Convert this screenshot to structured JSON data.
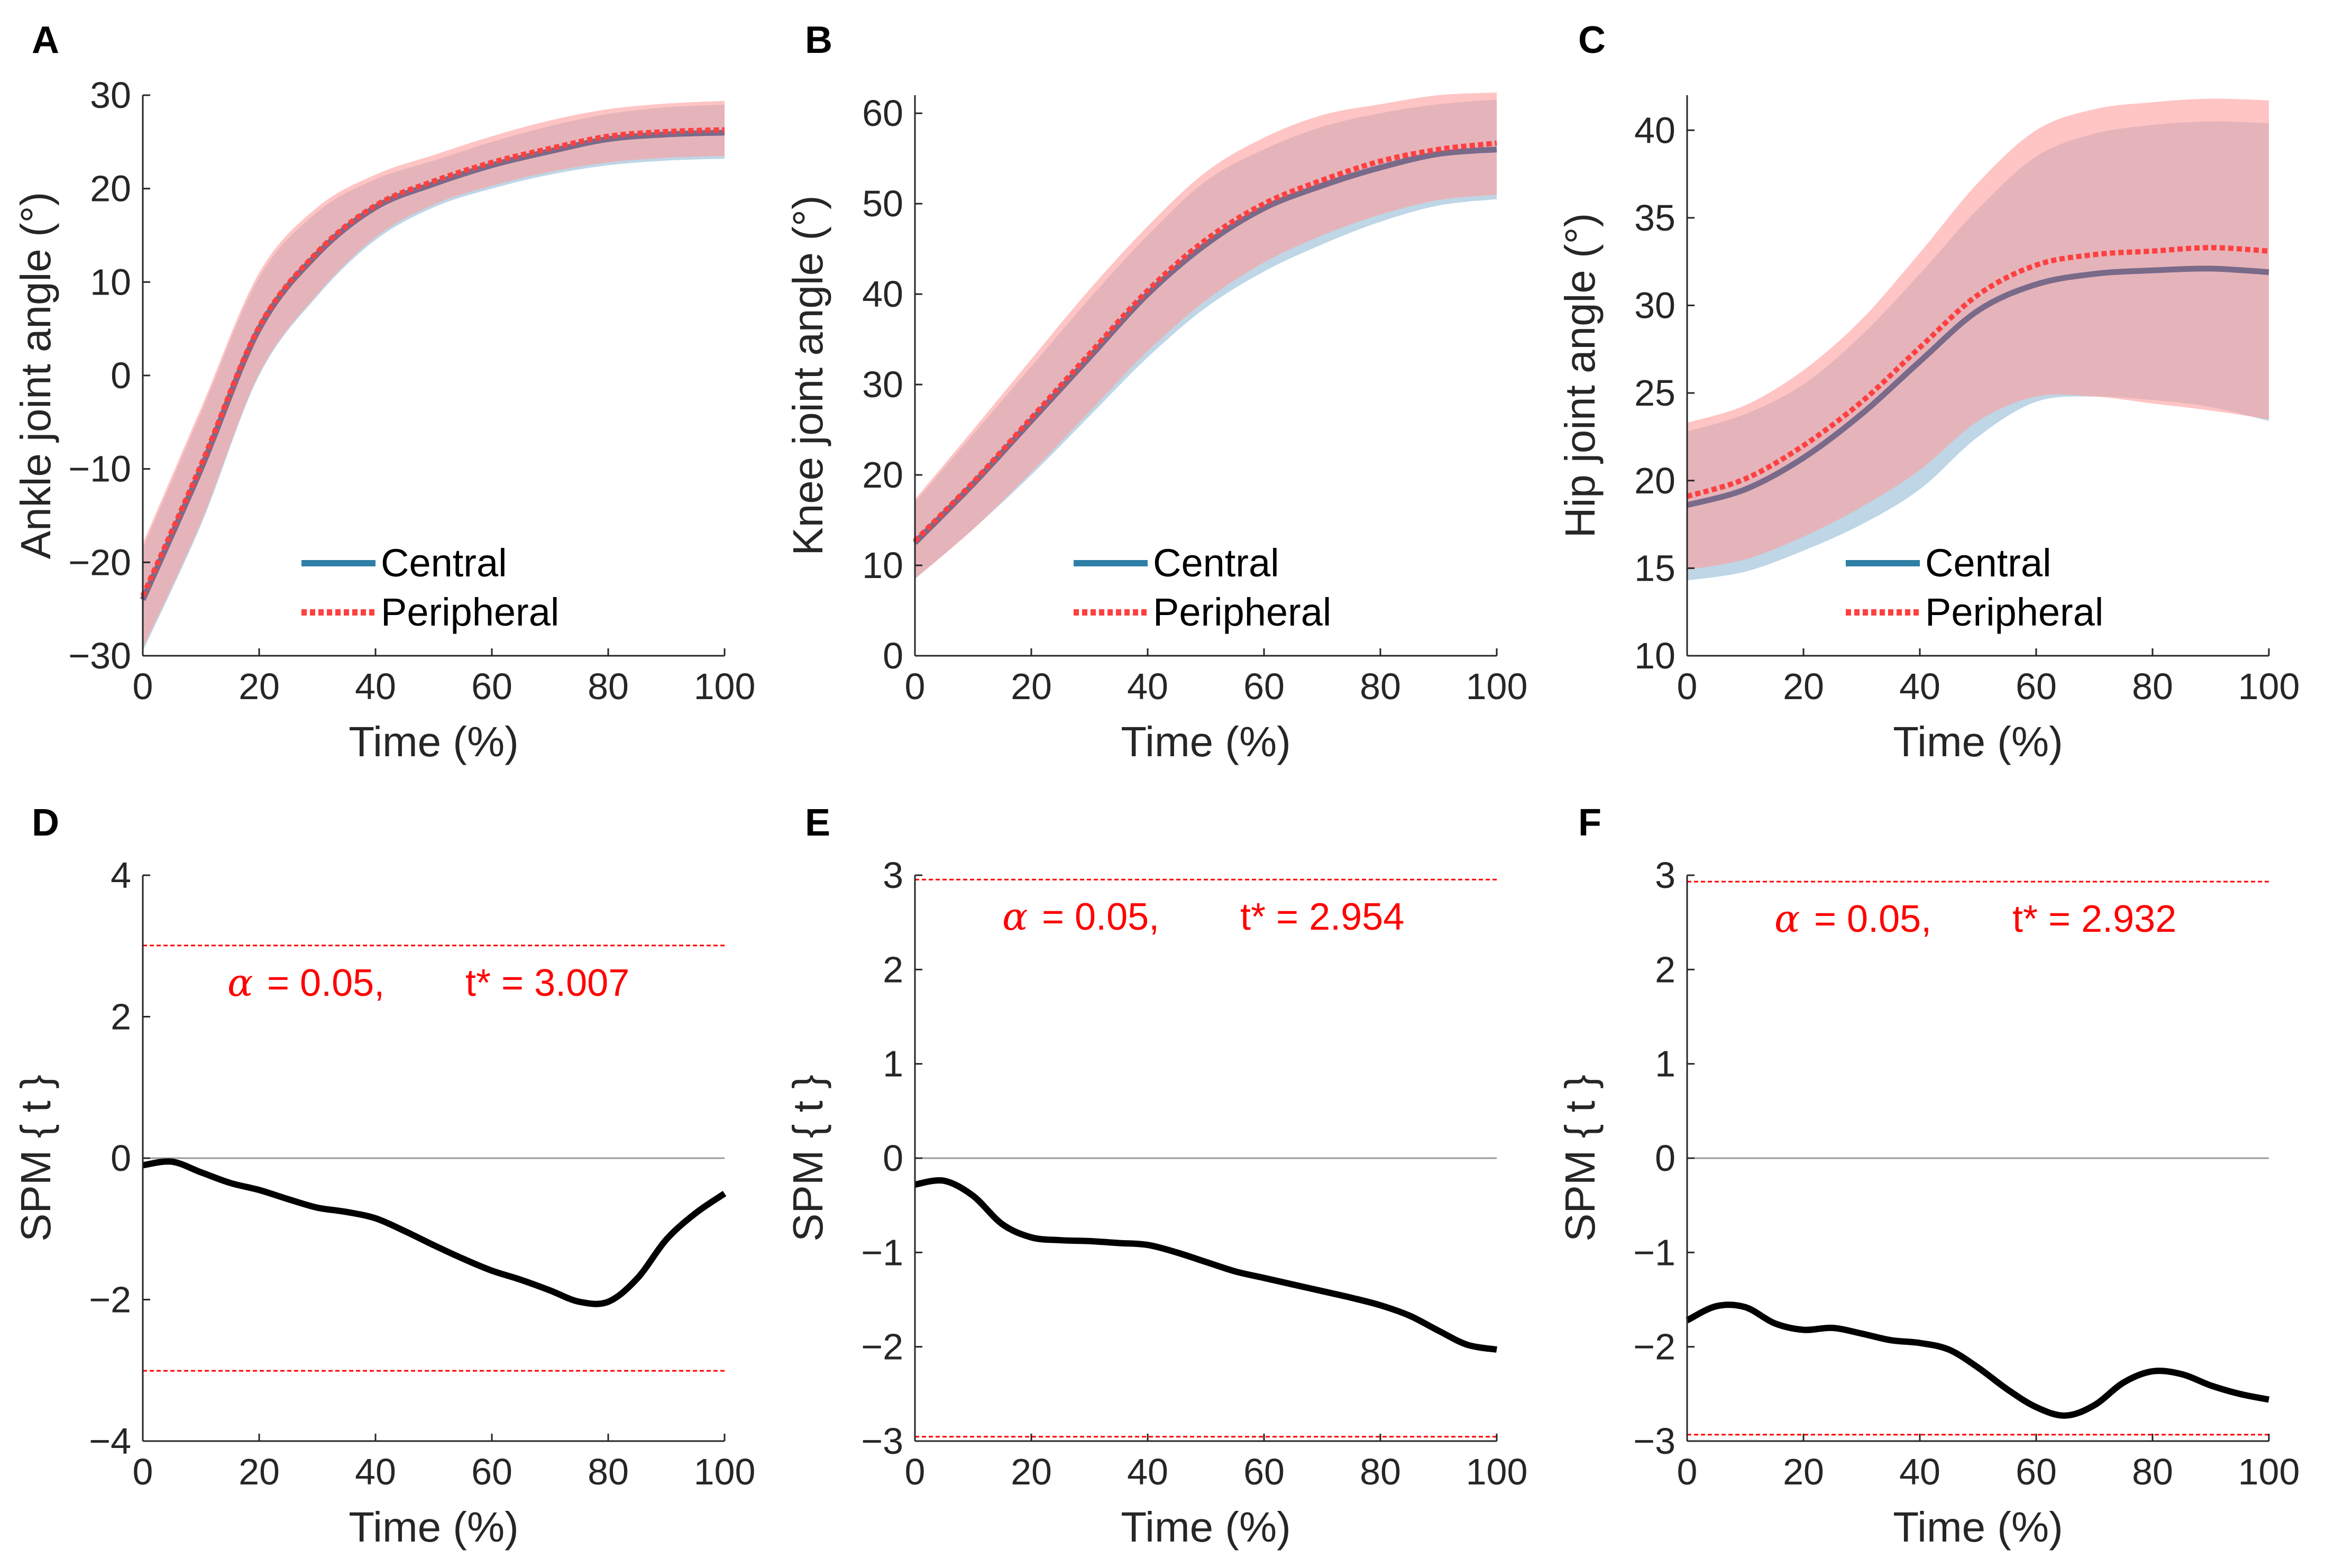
{
  "colors": {
    "central_line": "#2e7fa6",
    "central_band": "#a8c8dd",
    "peripheral_line": "#ff4040",
    "peripheral_band": "#ff9c9c",
    "overlap_line": "#7a6a8a",
    "threshold": "#ff0000",
    "spm_line": "#000000",
    "zero_line": "#999999",
    "annot_text": "#ff0000"
  },
  "chart_data": [
    {
      "id": "A",
      "letter": "A",
      "type": "line",
      "xlabel": "Time (%)",
      "ylabel": "Ankle joint angle (°)",
      "xlim": [
        0,
        100
      ],
      "ylim": [
        -30,
        30
      ],
      "xticks": [
        0,
        20,
        40,
        60,
        80,
        100
      ],
      "yticks": [
        -30,
        -20,
        -10,
        0,
        10,
        20,
        30
      ],
      "ytick_labels": [
        "−30",
        "−20",
        "−10",
        "0",
        "10",
        "20",
        "30"
      ],
      "legend": {
        "entries": [
          "Central",
          "Peripheral"
        ],
        "position": "bottom-right"
      },
      "x": [
        0,
        10,
        20,
        30,
        40,
        50,
        60,
        70,
        80,
        90,
        100
      ],
      "series": [
        {
          "name": "Central",
          "mean": [
            -24,
            -10,
            5,
            13,
            18,
            20.5,
            22.5,
            24,
            25.3,
            25.8,
            26
          ],
          "upper": [
            -18.5,
            -4,
            10.5,
            17.5,
            21,
            23,
            25,
            26.7,
            28,
            28.7,
            29
          ],
          "lower": [
            -29.5,
            -16,
            0,
            8.5,
            14.5,
            18,
            20,
            21.5,
            22.5,
            23,
            23.2
          ]
        },
        {
          "name": "Peripheral",
          "mean": [
            -23.6,
            -9.6,
            5.2,
            13.2,
            18.2,
            20.8,
            22.8,
            24.3,
            25.6,
            26.1,
            26.3
          ],
          "upper": [
            -18,
            -3.5,
            11,
            18,
            21.5,
            23.6,
            25.6,
            27.3,
            28.5,
            29.1,
            29.4
          ],
          "lower": [
            -29.2,
            -15.7,
            0.2,
            8.7,
            14.8,
            18.3,
            20.3,
            21.8,
            22.8,
            23.3,
            23.5
          ]
        }
      ]
    },
    {
      "id": "B",
      "letter": "B",
      "type": "line",
      "xlabel": "Time (%)",
      "ylabel": "Knee joint angle (°)",
      "xlim": [
        0,
        100
      ],
      "ylim": [
        0,
        62
      ],
      "xticks": [
        0,
        20,
        40,
        60,
        80,
        100
      ],
      "yticks": [
        0,
        10,
        20,
        30,
        40,
        50,
        60
      ],
      "ytick_labels": [
        "0",
        "10",
        "20",
        "30",
        "40",
        "50",
        "60"
      ],
      "legend": {
        "entries": [
          "Central",
          "Peripheral"
        ],
        "position": "bottom-right"
      },
      "x": [
        0,
        10,
        20,
        30,
        40,
        50,
        60,
        70,
        80,
        90,
        100
      ],
      "series": [
        {
          "name": "Central",
          "mean": [
            12.5,
            19,
            26,
            33,
            40,
            45.5,
            49.5,
            52,
            54,
            55.5,
            56
          ],
          "upper": [
            17,
            24.5,
            32,
            39.5,
            46.5,
            52.5,
            56,
            58.5,
            60,
            61,
            61.5
          ],
          "lower": [
            8.5,
            14,
            20,
            26.5,
            33,
            38.5,
            42.5,
            45.5,
            48,
            49.8,
            50.5
          ]
        },
        {
          "name": "Peripheral",
          "mean": [
            12.7,
            19.2,
            26.3,
            33.4,
            40.4,
            46,
            50,
            52.6,
            54.7,
            56,
            56.7
          ],
          "upper": [
            17.3,
            25,
            32.8,
            40.5,
            47.5,
            53.5,
            57.3,
            59.8,
            61,
            62,
            62.3
          ],
          "lower": [
            8.5,
            14,
            20.3,
            27,
            33.7,
            39.3,
            43.5,
            46.5,
            48.8,
            50.4,
            51
          ]
        }
      ]
    },
    {
      "id": "C",
      "letter": "C",
      "type": "line",
      "xlabel": "Time (%)",
      "ylabel": "Hip joint angle (°)",
      "xlim": [
        0,
        100
      ],
      "ylim": [
        10,
        42
      ],
      "xticks": [
        0,
        20,
        40,
        60,
        80,
        100
      ],
      "yticks": [
        10,
        15,
        20,
        25,
        30,
        35,
        40
      ],
      "ytick_labels": [
        "10",
        "15",
        "20",
        "25",
        "30",
        "35",
        "40"
      ],
      "legend": {
        "entries": [
          "Central",
          "Peripheral"
        ],
        "position": "bottom-right"
      },
      "x": [
        0,
        10,
        20,
        30,
        40,
        50,
        60,
        70,
        80,
        90,
        100
      ],
      "series": [
        {
          "name": "Central",
          "mean": [
            18.6,
            19.5,
            21.3,
            23.8,
            26.8,
            29.7,
            31.2,
            31.8,
            32,
            32.1,
            31.9
          ],
          "upper": [
            22.8,
            23.8,
            25.5,
            28.3,
            31.8,
            35.5,
            38.5,
            39.8,
            40.3,
            40.5,
            40.4
          ],
          "lower": [
            14.3,
            14.8,
            16,
            17.5,
            19.5,
            22.5,
            24.5,
            24.8,
            24.6,
            24.2,
            23.4
          ]
        },
        {
          "name": "Peripheral",
          "mean": [
            19.1,
            20.1,
            22,
            24.5,
            27.6,
            30.6,
            32.3,
            32.9,
            33.1,
            33.3,
            33.1
          ],
          "upper": [
            23.3,
            24.3,
            26.3,
            29.2,
            33,
            37,
            40,
            41.2,
            41.6,
            41.8,
            41.7
          ],
          "lower": [
            14.9,
            15.5,
            16.8,
            18.5,
            20.6,
            23.4,
            24.8,
            24.8,
            24.4,
            24,
            23.5
          ]
        }
      ]
    },
    {
      "id": "D",
      "letter": "D",
      "type": "line",
      "xlabel": "Time (%)",
      "ylabel": "SPM { t }",
      "xlim": [
        0,
        100
      ],
      "ylim": [
        -4,
        4
      ],
      "xticks": [
        0,
        20,
        40,
        60,
        80,
        100
      ],
      "yticks": [
        -4,
        -2,
        0,
        2,
        4
      ],
      "ytick_labels": [
        "−4",
        "−2",
        "0",
        "2",
        "4"
      ],
      "threshold": 3.007,
      "annotation": {
        "alpha_symbol": "α",
        "alpha_text": "= 0.05,",
        "t_text": "t* = 3.007"
      },
      "x": [
        0,
        5,
        10,
        15,
        20,
        25,
        30,
        35,
        40,
        45,
        50,
        55,
        60,
        65,
        70,
        75,
        80,
        85,
        90,
        95,
        100
      ],
      "series": [
        {
          "name": "SPM{t}",
          "values": [
            -0.1,
            -0.05,
            -0.2,
            -0.35,
            -0.45,
            -0.58,
            -0.7,
            -0.76,
            -0.85,
            -1.03,
            -1.23,
            -1.42,
            -1.59,
            -1.72,
            -1.87,
            -2.03,
            -2.03,
            -1.7,
            -1.15,
            -0.78,
            -0.5
          ]
        }
      ]
    },
    {
      "id": "E",
      "letter": "E",
      "type": "line",
      "xlabel": "Time (%)",
      "ylabel": "SPM { t }",
      "xlim": [
        0,
        100
      ],
      "ylim": [
        -3,
        3
      ],
      "xticks": [
        0,
        20,
        40,
        60,
        80,
        100
      ],
      "yticks": [
        -3,
        -2,
        -1,
        0,
        1,
        2,
        3
      ],
      "ytick_labels": [
        "−3",
        "−2",
        "−1",
        "0",
        "1",
        "2",
        "3"
      ],
      "threshold": 2.954,
      "annotation": {
        "alpha_symbol": "α",
        "alpha_text": "= 0.05,",
        "t_text": "t* = 2.954"
      },
      "x": [
        0,
        5,
        10,
        15,
        20,
        25,
        30,
        35,
        40,
        45,
        50,
        55,
        60,
        65,
        70,
        75,
        80,
        85,
        90,
        95,
        100
      ],
      "series": [
        {
          "name": "SPM{t}",
          "values": [
            -0.28,
            -0.24,
            -0.4,
            -0.7,
            -0.84,
            -0.87,
            -0.88,
            -0.9,
            -0.92,
            -1.0,
            -1.1,
            -1.2,
            -1.27,
            -1.34,
            -1.41,
            -1.48,
            -1.56,
            -1.67,
            -1.83,
            -1.98,
            -2.03
          ]
        }
      ]
    },
    {
      "id": "F",
      "letter": "F",
      "type": "line",
      "xlabel": "Time (%)",
      "ylabel": "SPM { t }",
      "xlim": [
        0,
        100
      ],
      "ylim": [
        -3,
        3
      ],
      "xticks": [
        0,
        20,
        40,
        60,
        80,
        100
      ],
      "yticks": [
        -3,
        -2,
        -1,
        0,
        1,
        2,
        3
      ],
      "ytick_labels": [
        "−3",
        "−2",
        "−1",
        "0",
        "1",
        "2",
        "3"
      ],
      "threshold": 2.932,
      "annotation": {
        "alpha_symbol": "α",
        "alpha_text": "= 0.05,",
        "t_text": "t* = 2.932"
      },
      "x": [
        0,
        5,
        10,
        15,
        20,
        25,
        30,
        35,
        40,
        45,
        50,
        55,
        60,
        65,
        70,
        75,
        80,
        85,
        90,
        95,
        100
      ],
      "series": [
        {
          "name": "SPM{t}",
          "values": [
            -1.72,
            -1.57,
            -1.58,
            -1.75,
            -1.82,
            -1.8,
            -1.86,
            -1.93,
            -1.96,
            -2.03,
            -2.22,
            -2.45,
            -2.64,
            -2.73,
            -2.62,
            -2.38,
            -2.26,
            -2.29,
            -2.41,
            -2.5,
            -2.56
          ]
        }
      ]
    }
  ]
}
